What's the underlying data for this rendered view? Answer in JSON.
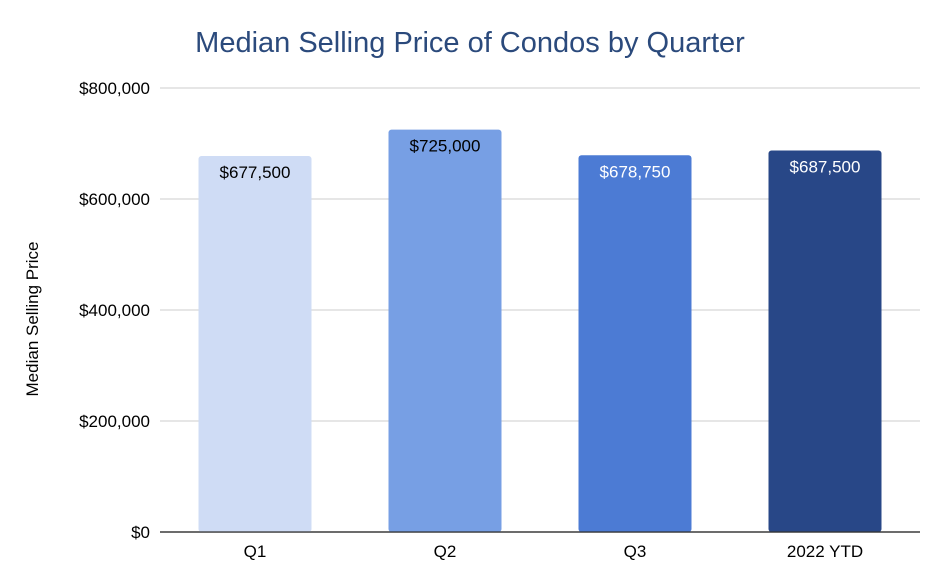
{
  "chart_data": {
    "type": "bar",
    "title": "Median Selling Price of Condos by Quarter",
    "xlabel": "",
    "ylabel": "Median Selling Price",
    "categories": [
      "Q1",
      "Q2",
      "Q3",
      "2022 YTD"
    ],
    "values": [
      677500,
      725000,
      678750,
      687500
    ],
    "data_labels": [
      "$677,500",
      "$725,000",
      "$678,750",
      "$687,500"
    ],
    "bar_colors": [
      "#cfdcf5",
      "#779fe4",
      "#4c7bd4",
      "#284787"
    ],
    "label_colors": [
      "#000000",
      "#000000",
      "#ffffff",
      "#ffffff"
    ],
    "ylim": [
      0,
      800000
    ],
    "yticks": [
      0,
      200000,
      400000,
      600000,
      800000
    ],
    "ytick_labels": [
      "$0",
      "$200,000",
      "$400,000",
      "$600,000",
      "$800,000"
    ],
    "grid": true,
    "legend": "none"
  }
}
